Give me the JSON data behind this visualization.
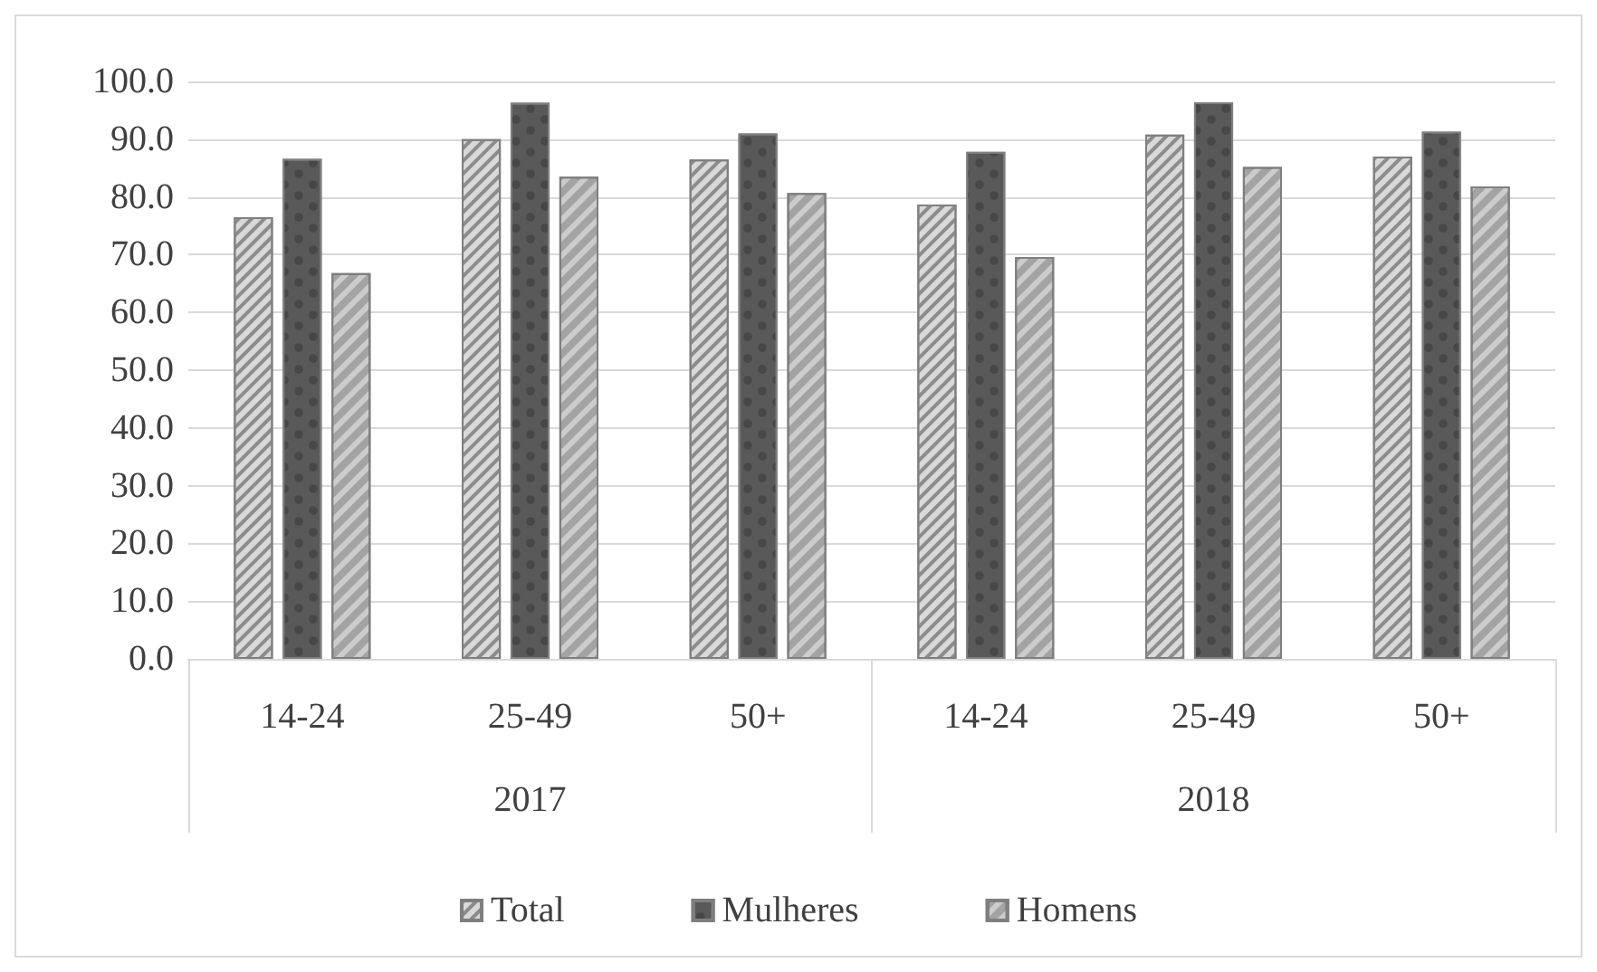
{
  "chart_data": {
    "type": "bar",
    "categories": [
      "14-24",
      "25-49",
      "50+",
      "14-24",
      "25-49",
      "50+"
    ],
    "annotations": [
      "2017",
      "2018"
    ],
    "series": [
      {
        "name": "Total",
        "color": "#d9d9d9",
        "values": [
          76.5,
          90.0,
          86.5,
          78.7,
          90.8,
          87.0
        ]
      },
      {
        "name": "Mulheres",
        "color": "#595959",
        "values": [
          86.6,
          96.3,
          91.0,
          87.8,
          96.4,
          91.3
        ]
      },
      {
        "name": "Homens",
        "color": "#cccccc",
        "values": [
          66.8,
          83.5,
          80.7,
          69.6,
          85.2,
          81.8
        ]
      }
    ],
    "ylim": [
      0,
      100
    ],
    "yticks": [
      {
        "value": 0,
        "label": "0.0"
      },
      {
        "value": 10,
        "label": "10.0"
      },
      {
        "value": 20,
        "label": "20.0"
      },
      {
        "value": 30,
        "label": "30.0"
      },
      {
        "value": 40,
        "label": "40.0"
      },
      {
        "value": 50,
        "label": "50.0"
      },
      {
        "value": 60,
        "label": "60.0"
      },
      {
        "value": 70,
        "label": "70.0"
      },
      {
        "value": 80,
        "label": "80.0"
      },
      {
        "value": 90,
        "label": "90.0"
      },
      {
        "value": 100,
        "label": "100.0"
      }
    ],
    "grid": "y",
    "legend": "bottom"
  }
}
